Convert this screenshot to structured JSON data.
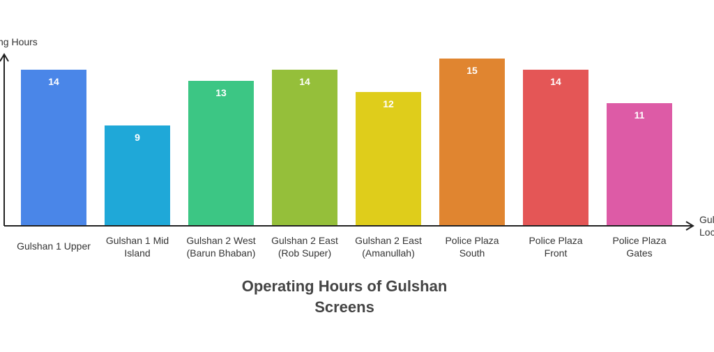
{
  "chart_data": {
    "type": "bar",
    "title_lines": [
      "Operating Hours of Gulshan",
      "Screens"
    ],
    "ylabel": "ng Hours",
    "xlabel_lines": [
      "Gul",
      "Loc"
    ],
    "categories": [
      [
        "Gulshan 1 Upper"
      ],
      [
        "Gulshan 1 Mid",
        "Island"
      ],
      [
        "Gulshan 2 West",
        "(Barun Bhaban)"
      ],
      [
        "Gulshan 2 East",
        "(Rob Super)"
      ],
      [
        "Gulshan 2 East",
        "(Amanullah)"
      ],
      [
        "Police Plaza",
        "South"
      ],
      [
        "Police Plaza",
        "Front"
      ],
      [
        "Police Plaza",
        "Gates"
      ]
    ],
    "values": [
      14,
      9,
      13,
      14,
      12,
      15,
      14,
      11
    ],
    "colors": [
      "#4a86e8",
      "#1fa8d8",
      "#3cc684",
      "#95bf3a",
      "#dfcd1b",
      "#e08530",
      "#e45656",
      "#dd5ba6"
    ],
    "axis_color": "#222222",
    "grid": false,
    "legend": "none"
  }
}
